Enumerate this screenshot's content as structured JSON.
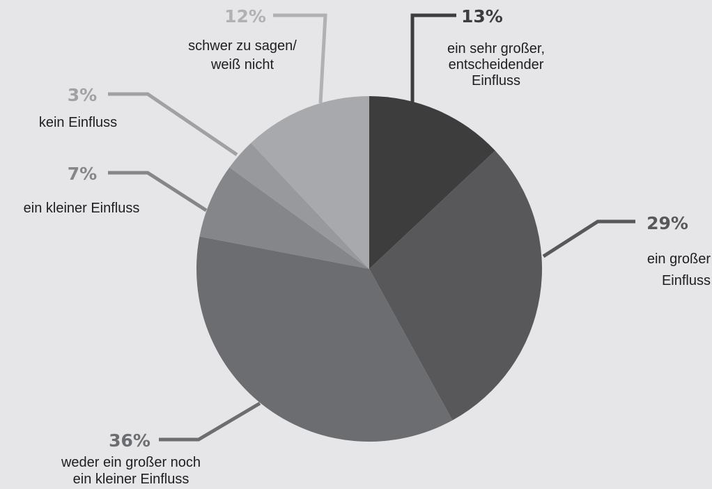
{
  "chart_data": {
    "type": "pie",
    "start_angle_deg": 0,
    "direction": "clockwise",
    "slices": [
      {
        "label_lines": [
          "ein sehr großer,",
          "entscheidender",
          "Einfluss"
        ],
        "value": 13,
        "value_label": "13%",
        "color": "#3d3d3e",
        "label_color": "#3d3d3e"
      },
      {
        "label_lines": [
          "ein großer",
          "Einfluss"
        ],
        "value": 29,
        "value_label": "29%",
        "color": "#58585b",
        "label_color": "#58585b"
      },
      {
        "label_lines": [
          "weder ein großer noch",
          "ein kleiner Einfluss"
        ],
        "value": 36,
        "value_label": "36%",
        "color": "#6c6d71",
        "label_color": "#6c6d71"
      },
      {
        "label_lines": [
          "ein kleiner Einfluss"
        ],
        "value": 7,
        "value_label": "7%",
        "color": "#85868a",
        "label_color": "#85868a"
      },
      {
        "label_lines": [
          "kein Einfluss"
        ],
        "value": 3,
        "value_label": "3%",
        "color": "#98999d",
        "label_color": "#a0a1a5"
      },
      {
        "label_lines": [
          "schwer zu sagen/",
          "weiß nicht"
        ],
        "value": 12,
        "value_label": "12%",
        "color": "#a8a9ad",
        "label_color": "#b0b1b4"
      }
    ]
  }
}
